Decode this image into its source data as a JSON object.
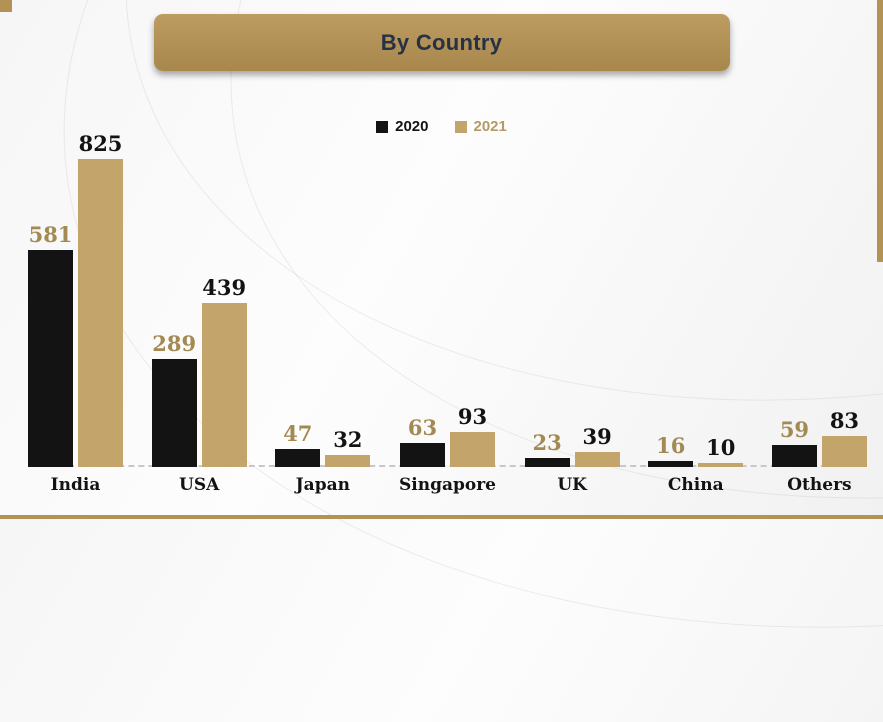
{
  "title": "By Country",
  "colors": {
    "accent_gold": "#b29255",
    "bar_black": "#131313",
    "bar_tan": "#c3a46b",
    "label_gold": "#a38a52",
    "banner_text": "#253246"
  },
  "chart_data": {
    "type": "bar",
    "title": "By Country",
    "categories": [
      "India",
      "USA",
      "Japan",
      "Singapore",
      "UK",
      "China",
      "Others"
    ],
    "series": [
      {
        "name": "2020",
        "color": "#131313",
        "label_color": "#a38a52",
        "legend_text_color": "#131313",
        "values": [
          581,
          289,
          47,
          63,
          23,
          16,
          59
        ]
      },
      {
        "name": "2021",
        "color": "#c3a46b",
        "label_color": "#131313",
        "legend_text_color": "#b49a63",
        "values": [
          825,
          439,
          32,
          93,
          39,
          10,
          83
        ]
      }
    ],
    "xlabel": "",
    "ylabel": "",
    "ylim": [
      0,
      825
    ],
    "grid": false,
    "legend_position": "top-center"
  }
}
